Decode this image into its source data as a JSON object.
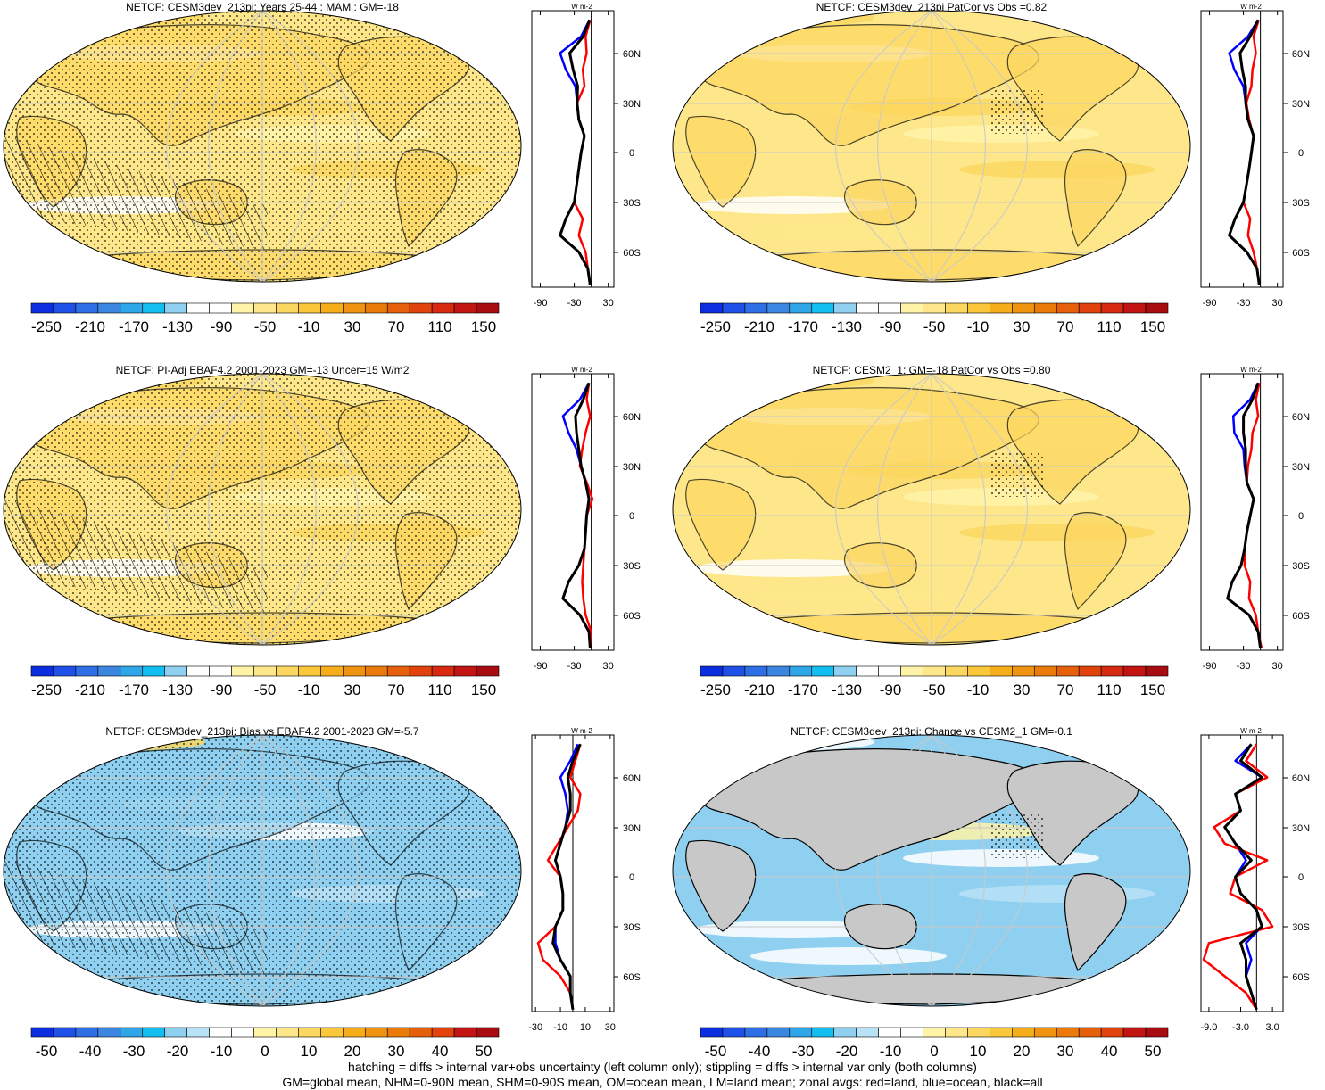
{
  "caption": {
    "line1": "hatching = diffs > internal var+obs uncertainty (left column only); stippling = diffs > internal var only (both columns)",
    "line2": "GM=global mean, NHM=0-90N mean, SHM=0-90S mean, OM=ocean mean, LM=land mean; zonal avgs: red=land, blue=ocean, black=all"
  },
  "colorbar_mean": {
    "labels": [
      "-250",
      "-210",
      "-170",
      "-130",
      "-90",
      "-50",
      "-10",
      "30",
      "70",
      "110",
      "150"
    ],
    "colors": [
      "#0b2fe0",
      "#1f50e8",
      "#2f6fe6",
      "#3b86e0",
      "#2ea6e8",
      "#13bff0",
      "#8fd0f0",
      "#ffffff",
      "#ffffff",
      "#fff3a8",
      "#fde78a",
      "#fcd760",
      "#fbc73a",
      "#f6ad1a",
      "#f09310",
      "#ea7a0a",
      "#e65f0a",
      "#e2420c",
      "#d82a10",
      "#c21413",
      "#a80c10"
    ]
  },
  "colorbar_diff": {
    "labels": [
      "-50",
      "-40",
      "-30",
      "-20",
      "-10",
      "0",
      "10",
      "20",
      "30",
      "40",
      "50"
    ],
    "colors": [
      "#0b2fe0",
      "#1f50e8",
      "#2f6fe6",
      "#3b86e0",
      "#2ea6e8",
      "#13bff0",
      "#8fd0f0",
      "#b8e2f6",
      "#ffffff",
      "#ffffff",
      "#fff3a8",
      "#fde78a",
      "#fcd760",
      "#fbc73a",
      "#f6ad1a",
      "#f09310",
      "#ea7a0a",
      "#e65f0a",
      "#e2420c",
      "#c21413",
      "#a80c10"
    ]
  },
  "panels": [
    {
      "title": "NETCF: CESM3dev_213pi: Years 25-44 : MAM : GM=-18",
      "cb": "mean",
      "zonal_xticks": [
        "-90",
        "-30",
        "30"
      ],
      "zonal_range": [
        -105,
        40
      ],
      "zero_x": 0
    },
    {
      "title": "NETCF: CESM3dev_213pi PatCor vs Obs =0.82",
      "cb": "mean",
      "zonal_xticks": [
        "-90",
        "-30",
        "30"
      ],
      "zonal_range": [
        -105,
        40
      ],
      "zero_x": 0
    },
    {
      "title": "NETCF: PI-Adj EBAF4.2 2001-2023 GM=-13 Uncer=15 W/m2",
      "cb": "mean",
      "zonal_xticks": [
        "-90",
        "-30",
        "30"
      ],
      "zonal_range": [
        -105,
        40
      ],
      "zero_x": 0
    },
    {
      "title": "NETCF: CESM2_1: GM=-18 PatCor vs Obs =0.80",
      "cb": "mean",
      "zonal_xticks": [
        "-90",
        "-30",
        "30"
      ],
      "zonal_range": [
        -105,
        40
      ],
      "zero_x": 0
    },
    {
      "title": "NETCF: CESM3dev_213pi: Bias vs EBAF4.2 2001-2023 GM=-5.7",
      "cb": "diff",
      "zonal_xticks": [
        "-30",
        "-10",
        "10",
        "30"
      ],
      "zonal_range": [
        -33,
        33
      ],
      "zero_x": 0
    },
    {
      "title": "NETCF: CESM3dev_213pi: Change vs CESM2_1 GM=-0.1",
      "cb": "diff",
      "zonal_xticks": [
        "-9.0",
        "-3.0",
        "3.0"
      ],
      "zonal_range": [
        -10.5,
        5
      ],
      "zero_x": 0
    }
  ],
  "zonal_unit": "W m-2",
  "lat_ticks": [
    "60N",
    "30N",
    "0",
    "30S",
    "60S"
  ],
  "colors": {
    "land_line": "#ff0000",
    "ocean_line": "#0000ff",
    "all_line": "#000000",
    "land_fill": "#c8c8c8",
    "graticule": "#c8c8c8"
  },
  "chart_data": [
    {
      "type": "line",
      "title": "NETCF: CESM3dev_213pi: Years 25-44 : MAM : GM=-18",
      "xlabel": "",
      "ylabel": "",
      "y": [
        "80N",
        "70N",
        "60N",
        "50N",
        "40N",
        "30N",
        "20N",
        "10N",
        "0",
        "10S",
        "20S",
        "30S",
        "40S",
        "50S",
        "60S",
        "70S",
        "80S"
      ],
      "series": [
        {
          "name": "land",
          "values": [
            -2,
            -10,
            -8,
            -15,
            -12,
            -25,
            -22,
            -12,
            -18,
            -22,
            -26,
            -30,
            -15,
            -22,
            -10,
            -6,
            -2
          ]
        },
        {
          "name": "ocean",
          "values": [
            -3,
            -18,
            -55,
            -45,
            -28,
            -25,
            -22,
            -12,
            -18,
            -22,
            -26,
            -30,
            -45,
            -55,
            -22,
            -6,
            -2
          ]
        },
        {
          "name": "all",
          "values": [
            -3,
            -14,
            -38,
            -32,
            -24,
            -25,
            -22,
            -12,
            -18,
            -22,
            -26,
            -30,
            -45,
            -55,
            -22,
            -6,
            -2
          ]
        }
      ]
    },
    {
      "type": "line",
      "title": "NETCF: CESM3dev_213pi PatCor vs Obs =0.82",
      "xlabel": "",
      "ylabel": "",
      "y": [
        "80N",
        "70N",
        "60N",
        "50N",
        "40N",
        "30N",
        "20N",
        "10N",
        "0",
        "10S",
        "20S",
        "30S",
        "40S",
        "50S",
        "60S",
        "70S",
        "80S"
      ],
      "series": [
        {
          "name": "land",
          "values": [
            -3,
            -12,
            -8,
            -14,
            -16,
            -25,
            -20,
            -12,
            -16,
            -20,
            -25,
            -30,
            -18,
            -22,
            -12,
            -6,
            -2
          ]
        },
        {
          "name": "ocean",
          "values": [
            -4,
            -22,
            -55,
            -46,
            -30,
            -26,
            -22,
            -12,
            -16,
            -20,
            -25,
            -30,
            -45,
            -55,
            -24,
            -6,
            -2
          ]
        },
        {
          "name": "all",
          "values": [
            -4,
            -18,
            -36,
            -32,
            -26,
            -26,
            -22,
            -12,
            -16,
            -20,
            -25,
            -30,
            -45,
            -55,
            -24,
            -6,
            -2
          ]
        }
      ]
    },
    {
      "type": "line",
      "title": "NETCF: PI-Adj EBAF4.2 2001-2023 GM=-13 Uncer=15 W/m2",
      "xlabel": "",
      "ylabel": "",
      "y": [
        "80N",
        "70N",
        "60N",
        "50N",
        "40N",
        "30N",
        "20N",
        "10N",
        "0",
        "10S",
        "20S",
        "30S",
        "40S",
        "50S",
        "60S",
        "70S",
        "80S"
      ],
      "series": [
        {
          "name": "land",
          "values": [
            -4,
            -8,
            -2,
            -10,
            -16,
            -20,
            -8,
            2,
            -8,
            -10,
            -12,
            -14,
            -16,
            -14,
            -10,
            0,
            -2
          ]
        },
        {
          "name": "ocean",
          "values": [
            -4,
            -20,
            -50,
            -40,
            -26,
            -18,
            -10,
            -4,
            -8,
            -10,
            -12,
            -22,
            -40,
            -50,
            -20,
            -4,
            -2
          ]
        },
        {
          "name": "all",
          "values": [
            -4,
            -14,
            -28,
            -26,
            -22,
            -18,
            -10,
            -4,
            -8,
            -10,
            -12,
            -22,
            -40,
            -50,
            -20,
            -4,
            -2
          ]
        }
      ]
    },
    {
      "type": "line",
      "title": "NETCF: CESM2_1: GM=-18 PatCor vs Obs =0.80",
      "xlabel": "",
      "ylabel": "",
      "y": [
        "80N",
        "70N",
        "60N",
        "50N",
        "40N",
        "30N",
        "20N",
        "10N",
        "0",
        "10S",
        "20S",
        "30S",
        "40S",
        "50S",
        "60S",
        "70S",
        "80S"
      ],
      "series": [
        {
          "name": "land",
          "values": [
            -2,
            -8,
            -4,
            -14,
            -16,
            -22,
            -24,
            -12,
            -18,
            -24,
            -28,
            -28,
            -18,
            -20,
            -8,
            -4,
            2
          ]
        },
        {
          "name": "ocean",
          "values": [
            -4,
            -18,
            -48,
            -46,
            -30,
            -28,
            -24,
            -12,
            -18,
            -24,
            -28,
            -34,
            -50,
            -58,
            -20,
            -4,
            0
          ]
        },
        {
          "name": "all",
          "values": [
            -4,
            -14,
            -30,
            -30,
            -26,
            -26,
            -24,
            -12,
            -18,
            -24,
            -28,
            -34,
            -50,
            -58,
            -20,
            -4,
            0
          ]
        }
      ]
    },
    {
      "type": "line",
      "title": "NETCF: CESM3dev_213pi: Bias vs EBAF4.2 2001-2023 GM=-5.7",
      "xlabel": "",
      "ylabel": "",
      "y": [
        "80N",
        "70N",
        "60N",
        "50N",
        "40N",
        "30N",
        "20N",
        "10N",
        "0",
        "10S",
        "20S",
        "30S",
        "40S",
        "50S",
        "60S",
        "70S",
        "80S"
      ],
      "series": [
        {
          "name": "land",
          "values": [
            6,
            2,
            -2,
            6,
            4,
            -4,
            -12,
            -20,
            -10,
            -8,
            -8,
            -14,
            -28,
            -24,
            -10,
            -2,
            0
          ]
        },
        {
          "name": "ocean",
          "values": [
            4,
            -2,
            -10,
            -6,
            -4,
            -6,
            -10,
            -14,
            -10,
            -8,
            -8,
            -14,
            -14,
            -10,
            -2,
            -2,
            0
          ]
        },
        {
          "name": "all",
          "values": [
            6,
            0,
            -4,
            -2,
            -2,
            -6,
            -10,
            -14,
            -10,
            -8,
            -8,
            -14,
            -16,
            -10,
            -2,
            -2,
            0
          ]
        }
      ]
    },
    {
      "type": "line",
      "title": "NETCF: CESM3dev_213pi: Change vs CESM2_1 GM=-0.1",
      "xlabel": "",
      "ylabel": "",
      "y": [
        "80N",
        "70N",
        "60N",
        "50N",
        "40N",
        "30N",
        "20N",
        "10N",
        "0",
        "10S",
        "20S",
        "30S",
        "40S",
        "50S",
        "60S",
        "70S",
        "80S"
      ],
      "series": [
        {
          "name": "land",
          "values": [
            0,
            -2,
            2,
            -4,
            -3,
            -8,
            -6,
            2,
            -4,
            -5,
            1,
            3,
            -9,
            -10,
            -6,
            -2,
            0
          ]
        },
        {
          "name": "ocean",
          "values": [
            -1,
            -4,
            1,
            -4,
            -3,
            -6,
            -4,
            -2,
            -4,
            -3,
            0,
            1,
            -2,
            -1,
            -2,
            -1,
            0
          ]
        },
        {
          "name": "all",
          "values": [
            -1,
            -3,
            1,
            -4,
            -3,
            -6,
            -4,
            -1,
            -4,
            -3,
            0,
            1,
            -3,
            -2,
            -2,
            -1,
            0
          ]
        }
      ]
    }
  ]
}
